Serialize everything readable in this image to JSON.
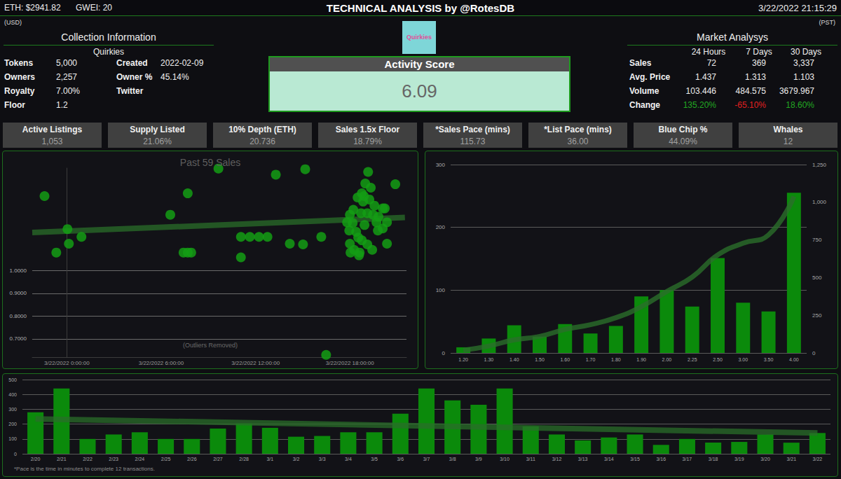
{
  "header": {
    "eth": "ETH: $2941.82",
    "gwei": "GWEI: 20",
    "title": "TECHNICAL ANALYSIS by @RotesDB",
    "timestamp": "3/22/2022 21:15:29",
    "left_unit": "(USD)",
    "right_unit": "(PST)"
  },
  "collection": {
    "title": "Collection Information",
    "name": "Quirkies",
    "rows": [
      [
        {
          "label": "Tokens",
          "value": "5,000"
        },
        {
          "label": "Created",
          "value": "2022-02-09"
        }
      ],
      [
        {
          "label": "Owners",
          "value": "2,257"
        },
        {
          "label": "Owner %",
          "value": "45.14%"
        }
      ],
      [
        {
          "label": "Royalty",
          "value": "7.00%"
        },
        {
          "label": "Twitter"
        }
      ],
      [
        {
          "label": "Floor",
          "value": "1.2"
        }
      ]
    ]
  },
  "logo": "Quirkies",
  "activity_score": {
    "title": "Activity Score",
    "value": "6.09"
  },
  "market": {
    "title": "Market Analysys",
    "columns": [
      "24 Hours",
      "7 Days",
      "30 Days"
    ],
    "rows": [
      {
        "label": "Sales",
        "values": [
          "72",
          "369",
          "3,337"
        ]
      },
      {
        "label": "Avg. Price",
        "values": [
          "1.437",
          "1.313",
          "1.103"
        ]
      },
      {
        "label": "Volume",
        "values": [
          "103.446",
          "484.575",
          "3679.967"
        ]
      },
      {
        "label": "Change",
        "values": [
          "135.20%",
          "-65.10%",
          "18.60%"
        ],
        "colors": [
          "#22a822",
          "#e02020",
          "#22a822"
        ]
      }
    ]
  },
  "stats": [
    {
      "label": "Active Listings",
      "value": "1,053"
    },
    {
      "label": "Supply Listed",
      "value": "21.06%"
    },
    {
      "label": "10% Depth (ETH)",
      "value": "20.736"
    },
    {
      "label": "Sales 1.5x Floor",
      "value": "18.79%"
    },
    {
      "label": "*Sales Pace (mins)",
      "value": "115.73"
    },
    {
      "label": "*List Pace (mins)",
      "value": "36.00"
    },
    {
      "label": "Blue Chip %",
      "value": "44.09%"
    },
    {
      "label": "Whales",
      "value": "12"
    }
  ],
  "footnote": "*Pace is the time in minutes to complete 12 transactions.",
  "chart_data": [
    {
      "type": "scatter",
      "title": "Past 59 Sales",
      "annotation": "(Outliers Removed)",
      "x": [
        -1.42,
        -0.67,
        0.04,
        0.13,
        0.93,
        6.58,
        7.42,
        7.69,
        7.69,
        7.91,
        9.64,
        11.07,
        11.07,
        11.64,
        12.22,
        12.76,
        13.29,
        14.18,
        15.02,
        15.16,
        16.18,
        16.49,
        17.82,
        17.96,
        18.0,
        18.0,
        18.04,
        18.18,
        18.22,
        18.27,
        18.4,
        18.49,
        18.53,
        18.58,
        18.62,
        18.71,
        18.76,
        18.76,
        18.84,
        18.89,
        18.93,
        18.98,
        19.11,
        19.11,
        19.16,
        19.24,
        19.33,
        19.42,
        19.47,
        19.56,
        19.69,
        19.78,
        19.82,
        20.09,
        20.09,
        20.22,
        20.36,
        20.36,
        20.89
      ],
      "values": [
        1.327,
        1.079,
        1.182,
        1.118,
        1.148,
        1.245,
        1.079,
        1.339,
        1.079,
        1.079,
        1.448,
        1.148,
        1.058,
        1.148,
        1.148,
        1.148,
        1.421,
        1.118,
        1.115,
        1.445,
        1.148,
        0.63,
        1.212,
        1.176,
        1.245,
        1.118,
        1.079,
        1.209,
        1.267,
        1.091,
        1.17,
        1.321,
        1.145,
        1.067,
        1.079,
        1.252,
        1.339,
        1.133,
        1.303,
        1.327,
        1.2,
        1.382,
        1.252,
        1.115,
        1.433,
        1.312,
        1.364,
        1.091,
        1.245,
        1.285,
        1.212,
        1.176,
        1.236,
        1.273,
        1.185,
        1.273,
        1.212,
        1.118,
        1.379
      ],
      "color": "#149e14",
      "marker": "circle",
      "trend": {
        "x": [
          -2.2,
          21.5
        ],
        "values": [
          1.167,
          1.233
        ],
        "color": "#2a6e2a"
      },
      "xlim": [
        -2.2,
        21.6
      ],
      "xticks": [
        {
          "value": 0,
          "label": "3/22/2022 0:00:00"
        },
        {
          "value": 6,
          "label": "3/22/2022 6:00:00"
        },
        {
          "value": 12,
          "label": "3/22/2022 12:00:00"
        },
        {
          "value": 18,
          "label": "3/22/2022 18:00:00"
        }
      ],
      "ylim": [
        0.62,
        1.45
      ],
      "yticks": [
        {
          "value": 0.7,
          "label": "0.7000"
        },
        {
          "value": 0.8,
          "label": "0.8000"
        },
        {
          "value": 0.9,
          "label": "0.9000"
        },
        {
          "value": 1.0,
          "label": "1.0000"
        }
      ],
      "grid": true
    },
    {
      "type": "bar",
      "categories": [
        "1.20",
        "1.30",
        "1.40",
        "1.50",
        "1.60",
        "1.70",
        "1.80",
        "1.90",
        "2.00",
        "2.25",
        "2.50",
        "3.00",
        "3.50",
        "4.00"
      ],
      "series": [
        {
          "type": "bar",
          "color": "#0b8a0b",
          "values": [
            9,
            23,
            44,
            26,
            46,
            31,
            43,
            90,
            100,
            74,
            151,
            80,
            66,
            255
          ]
        },
        {
          "type": "line",
          "axis": "y2",
          "color": "#2a6e2a",
          "values": [
            18,
            46,
            87,
            110,
            156,
            188,
            234,
            307,
            408,
            504,
            650,
            728,
            783,
            1039
          ]
        }
      ],
      "ylim": [
        0,
        300
      ],
      "yticks": [
        0,
        100,
        200,
        300
      ],
      "y2lim": [
        0,
        1250
      ],
      "y2ticks": [
        0,
        250,
        500,
        750,
        {
          "value": 1000,
          "label": "1,000"
        },
        {
          "value": 1250,
          "label": "1,250"
        }
      ],
      "grid": true
    },
    {
      "type": "bar",
      "categories": [
        "2/20",
        "2/21",
        "2/22",
        "2/23",
        "2/24",
        "2/25",
        "2/26",
        "2/27",
        "2/28",
        "3/1",
        "3/2",
        "3/3",
        "3/4",
        "3/5",
        "3/6",
        "3/7",
        "3/8",
        "3/9",
        "3/10",
        "3/11",
        "3/12",
        "3/13",
        "3/14",
        "3/15",
        "3/16",
        "3/17",
        "3/18",
        "3/19",
        "3/20",
        "3/21",
        "3/22"
      ],
      "values": [
        280,
        440,
        100,
        130,
        145,
        100,
        100,
        170,
        205,
        175,
        115,
        120,
        145,
        145,
        270,
        440,
        360,
        330,
        440,
        185,
        130,
        90,
        110,
        130,
        60,
        100,
        75,
        80,
        130,
        75,
        140
      ],
      "color": "#0b8a0b",
      "trend": {
        "values": [
          235,
          140
        ],
        "color": "#2a6e2a"
      },
      "ylim": [
        0,
        500
      ],
      "yticks": [
        0,
        100,
        200,
        300,
        400,
        500
      ],
      "grid": true
    }
  ]
}
